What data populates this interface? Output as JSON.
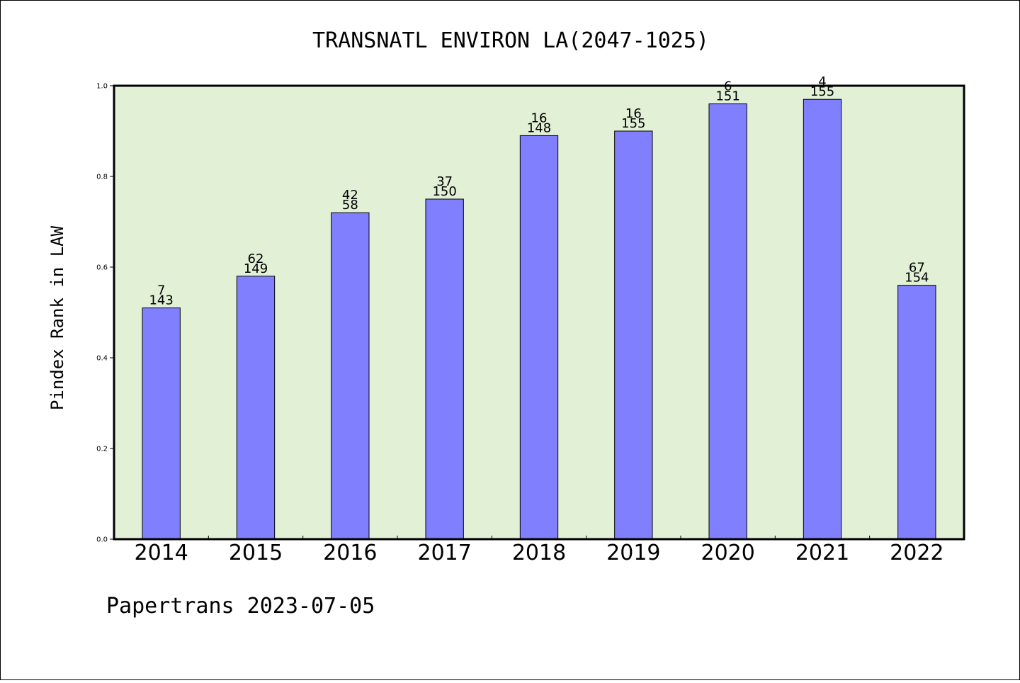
{
  "chart_data": {
    "type": "bar",
    "title": "TRANSNATL ENVIRON LA(2047-1025)",
    "ylabel": "Pindex Rank in LAW",
    "xlabel": "",
    "categories": [
      "2014",
      "2015",
      "2016",
      "2017",
      "2018",
      "2019",
      "2020",
      "2021",
      "2022"
    ],
    "values": [
      0.51,
      0.58,
      0.72,
      0.75,
      0.89,
      0.9,
      0.96,
      0.97,
      0.56
    ],
    "label_top": [
      "7",
      "62",
      "42",
      "37",
      "16",
      "16",
      "6",
      "4",
      "67"
    ],
    "label_bottom": [
      "143",
      "149",
      "58",
      "150",
      "148",
      "155",
      "151",
      "155",
      "154"
    ],
    "ylim": [
      0,
      1.0
    ],
    "yticks": [
      "0.0",
      "0.2",
      "0.4",
      "0.6",
      "0.8",
      "1.0"
    ],
    "grid": false,
    "colors": {
      "bar": "#8080ff",
      "plot_bg": "#e2f0d6"
    }
  },
  "footer": "Papertrans 2023-07-05"
}
